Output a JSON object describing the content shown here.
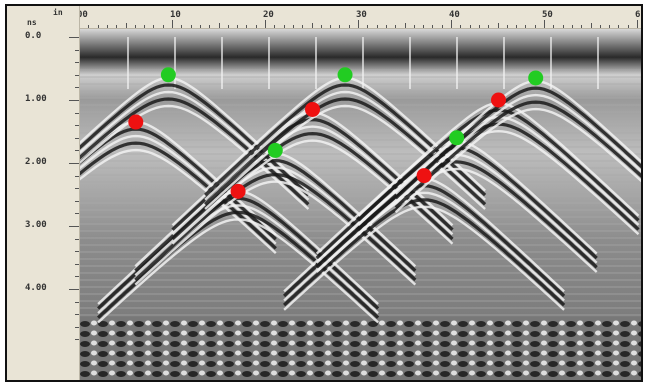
{
  "ruler": {
    "unit_distance": "in",
    "unit_time": "ns",
    "x_ticks": [
      "00",
      "10",
      "20",
      "30",
      "40",
      "50",
      "6"
    ],
    "y_ticks": [
      "0.0",
      "1.00",
      "2.00",
      "3.00",
      "4.00"
    ]
  },
  "radargram": {
    "colors": {
      "background": "#8a8a8a",
      "dark": "#1a1a1a",
      "light": "#f2f2f2"
    },
    "hyperbolas": [
      {
        "apex_x": 6,
        "apex_t": 1.35
      },
      {
        "apex_x": 9.5,
        "apex_t": 0.65
      },
      {
        "apex_x": 17,
        "apex_t": 2.45
      },
      {
        "apex_x": 21,
        "apex_t": 1.85
      },
      {
        "apex_x": 25,
        "apex_t": 1.2
      },
      {
        "apex_x": 28.5,
        "apex_t": 0.65
      },
      {
        "apex_x": 37,
        "apex_t": 2.25
      },
      {
        "apex_x": 40.5,
        "apex_t": 1.65
      },
      {
        "apex_x": 45,
        "apex_t": 1.05
      },
      {
        "apex_x": 49,
        "apex_t": 0.7
      }
    ]
  },
  "markers": {
    "colors": {
      "red": "#ee1111",
      "green": "#22cc22"
    },
    "points": [
      {
        "color": "red",
        "x": 6,
        "t": 1.35
      },
      {
        "color": "green",
        "x": 9.5,
        "t": 0.6
      },
      {
        "color": "red",
        "x": 17,
        "t": 2.45
      },
      {
        "color": "green",
        "x": 21,
        "t": 1.8
      },
      {
        "color": "red",
        "x": 25,
        "t": 1.15
      },
      {
        "color": "green",
        "x": 28.5,
        "t": 0.6
      },
      {
        "color": "red",
        "x": 37,
        "t": 2.2
      },
      {
        "color": "green",
        "x": 40.5,
        "t": 1.6
      },
      {
        "color": "red",
        "x": 45,
        "t": 1.0
      },
      {
        "color": "green",
        "x": 49,
        "t": 0.65
      }
    ]
  }
}
